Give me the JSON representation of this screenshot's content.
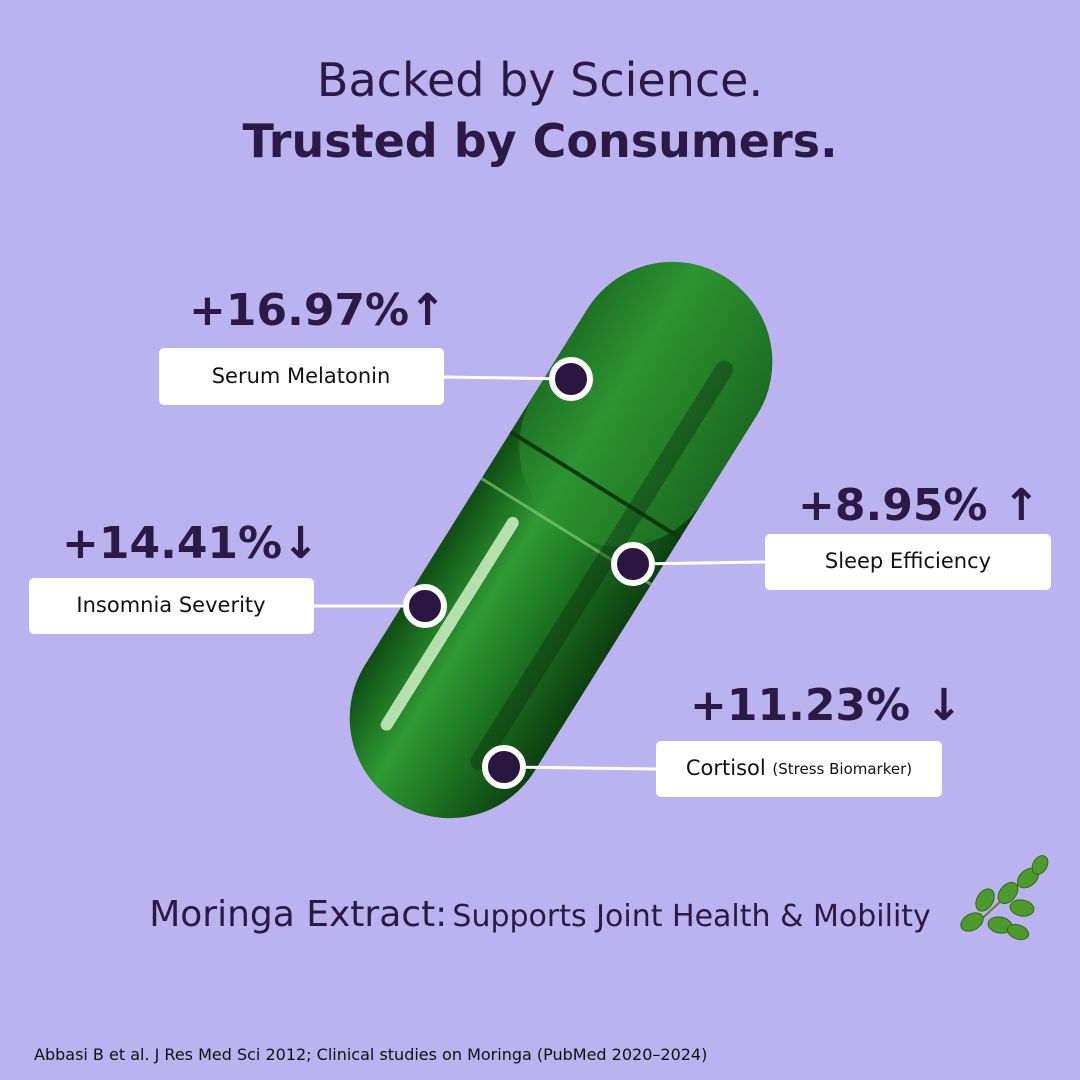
{
  "header": {
    "line1": "Backed by Science.",
    "line2": "Trusted by Consumers."
  },
  "callouts": [
    {
      "stat": "+16.97%↑",
      "label": "Serum Melatonin"
    },
    {
      "stat": "+14.41%↓",
      "label": "Insomnia Severity"
    },
    {
      "stat": "+8.95% ↑",
      "label": "Sleep Efficiency"
    },
    {
      "stat": "+11.23% ↓",
      "label": "Cortisol",
      "note": "(Stress Biomarker)"
    }
  ],
  "ingredient": {
    "name": "Moringa Extract:",
    "benefit": "Supports Joint Health & Mobility"
  },
  "citation": "Abbasi B et al. J Res Med Sci 2012; Clinical studies on Moringa (PubMed 2020–2024)"
}
